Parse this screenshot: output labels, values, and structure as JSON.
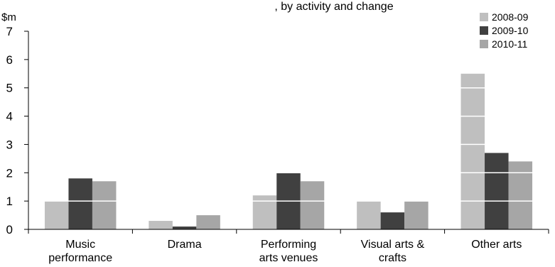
{
  "chart_data": {
    "type": "bar",
    "title": ", by activity and change",
    "unit_label": "$m",
    "categories": [
      [
        "Music",
        "performance"
      ],
      [
        "Drama"
      ],
      [
        "Performing",
        "arts venues"
      ],
      [
        "Visual arts &",
        "crafts"
      ],
      [
        "Other arts"
      ]
    ],
    "series": [
      {
        "name": "2008-09",
        "color": "#bfbfbf",
        "values": [
          1.0,
          0.3,
          1.2,
          1.0,
          5.5
        ]
      },
      {
        "name": "2009-10",
        "color": "#404040",
        "values": [
          1.8,
          0.1,
          2.0,
          0.6,
          2.7
        ]
      },
      {
        "name": "2010-11",
        "color": "#a6a6a6",
        "values": [
          1.7,
          0.5,
          1.7,
          1.0,
          2.4
        ]
      }
    ],
    "ylim": [
      0,
      7
    ],
    "yticks": [
      "0",
      "1",
      "2",
      "3",
      "4",
      "5",
      "6",
      "7"
    ],
    "gridlines": "white gridlines drawn over bars",
    "legend_position": "top-right"
  }
}
